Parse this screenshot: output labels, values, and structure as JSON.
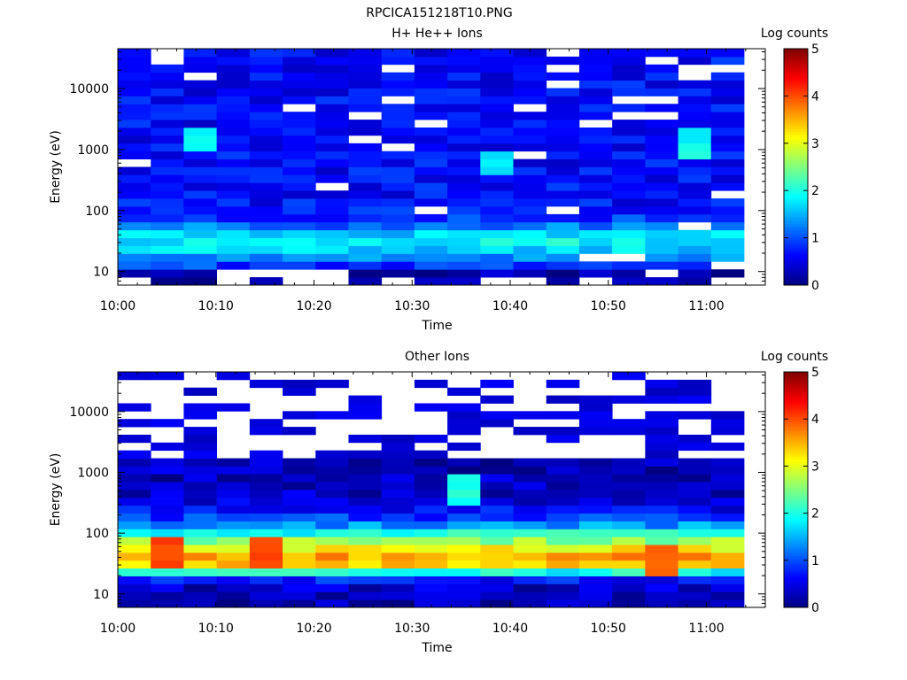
{
  "figure": {
    "title": "RPCICA151218T10.PNG"
  },
  "chart_data": [
    {
      "type": "heatmap",
      "title": "H+ He++ Ions",
      "xlabel": "Time",
      "ylabel": "Energy (eV)",
      "yscale": "log",
      "ylim": [
        6,
        45000
      ],
      "x_ticks": [
        "10:00",
        "10:10",
        "10:20",
        "10:30",
        "10:40",
        "10:50",
        "11:00"
      ],
      "y_ticks": [
        "10",
        "100",
        "1000",
        "10000"
      ],
      "colorbar": {
        "label": "Log counts",
        "range": [
          0,
          5
        ],
        "ticks": [
          "0",
          "1",
          "2",
          "3",
          "4",
          "5"
        ],
        "colormap": "jet"
      },
      "time_bins": 19,
      "energy_bins": 30,
      "profile_peak_energy_eV": 30,
      "profile_peak_log_counts": 2.0,
      "background_log_counts": 0.65,
      "hotspots": [
        {
          "time_bin": 2,
          "energy_eV": 1500,
          "log_counts": 1.9
        },
        {
          "time_bin": 11,
          "energy_eV": 600,
          "log_counts": 1.8
        },
        {
          "time_bin": 17,
          "energy_eV": 1200,
          "log_counts": 1.9
        }
      ]
    },
    {
      "type": "heatmap",
      "title": "Other Ions",
      "xlabel": "Time",
      "ylabel": "Energy (eV)",
      "yscale": "log",
      "ylim": [
        6,
        45000
      ],
      "x_ticks": [
        "10:00",
        "10:10",
        "10:20",
        "10:30",
        "10:40",
        "10:50",
        "11:00"
      ],
      "y_ticks": [
        "10",
        "100",
        "1000",
        "10000"
      ],
      "colorbar": {
        "label": "Log counts",
        "range": [
          0,
          5
        ],
        "ticks": [
          "0",
          "1",
          "2",
          "3",
          "4",
          "5"
        ],
        "colormap": "jet"
      },
      "time_bins": 19,
      "energy_bins": 30,
      "profile_peak_energy_eV": 35,
      "profile_peak_log_counts": 3.3,
      "background_log_counts": 0.3,
      "hotspots": [
        {
          "time_bin": 1,
          "energy_eV": 45,
          "log_counts": 4.0
        },
        {
          "time_bin": 4,
          "energy_eV": 45,
          "log_counts": 4.0
        },
        {
          "time_bin": 10,
          "energy_eV": 500,
          "log_counts": 2.0
        },
        {
          "time_bin": 16,
          "energy_eV": 35,
          "log_counts": 3.9
        }
      ]
    }
  ]
}
